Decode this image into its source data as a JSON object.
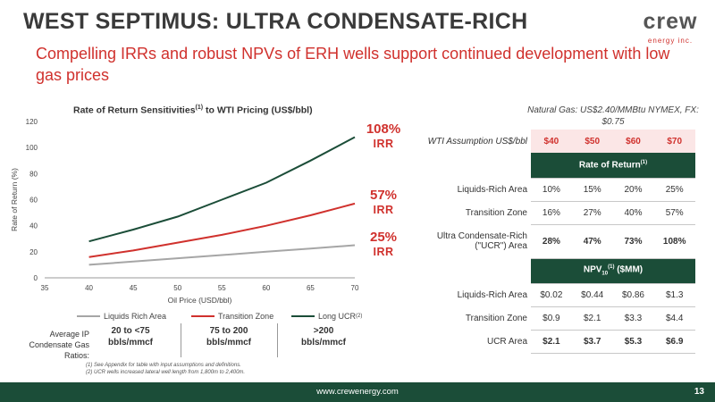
{
  "header": {
    "title": "WEST SEPTIMUS: ULTRA CONDENSATE-RICH",
    "subtitle": "Compelling IRRs and robust NPVs of ERH wells support continued development with low gas prices"
  },
  "logo": {
    "word": "crew",
    "sub": "energy inc."
  },
  "chart_data": {
    "type": "line",
    "title": "Rate of Return Sensitivities",
    "title_sup": "(1)",
    "title_suffix": " to WTI Pricing (US$/bbl)",
    "xlabel": "Oil Price (USD/bbl)",
    "ylabel": "Rate of Return (%)",
    "x": [
      40,
      45,
      50,
      55,
      60,
      65,
      70
    ],
    "xlim": [
      35,
      70
    ],
    "ylim": [
      0,
      120
    ],
    "xticks": [
      "35",
      "40",
      "45",
      "50",
      "55",
      "60",
      "65",
      "70"
    ],
    "yticks": [
      "0",
      "20",
      "40",
      "60",
      "80",
      "100",
      "120"
    ],
    "grid": false,
    "legend_position": "bottom",
    "series": [
      {
        "name": "Liquids Rich Area",
        "color": "#a6a6a6",
        "values": [
          10,
          12.5,
          15,
          17.5,
          20,
          22.5,
          25
        ]
      },
      {
        "name": "Transition Zone",
        "color": "#d0312d",
        "values": [
          16,
          21,
          27,
          33,
          40,
          48,
          57
        ]
      },
      {
        "name": "Long UCR",
        "name_sup": "(2)",
        "color": "#1b4d38",
        "values": [
          28,
          37,
          47,
          60,
          73,
          90,
          108
        ]
      }
    ],
    "end_labels": [
      {
        "pct": "108%",
        "label": "IRR",
        "color": "#d0312d"
      },
      {
        "pct": "57%",
        "label": "IRR",
        "color": "#d0312d"
      },
      {
        "pct": "25%",
        "label": "IRR",
        "color": "#d0312d"
      }
    ]
  },
  "ratios": {
    "label": "Average IP Condensate Gas Ratios:",
    "items": [
      {
        "line1": "20 to <75",
        "line2": "bbls/mmcf"
      },
      {
        "line1": "75 to 200",
        "line2": "bbls/mmcf"
      },
      {
        "line1": ">200",
        "line2": "bbls/mmcf"
      }
    ]
  },
  "footnotes": [
    "(1)     See Appendix for table with input assumptions and definitions.",
    "(2)     UCR wells increased lateral well length from 1,800m to 2,400m."
  ],
  "table": {
    "note": "Natural Gas: US$2.40/MMBtu NYMEX, FX: $0.75",
    "wti_label": "WTI Assumption US$/bbl",
    "columns": [
      "$40",
      "$50",
      "$60",
      "$70"
    ],
    "ror_header": "Rate of Return",
    "ror_sup": "(1)",
    "ror_rows": [
      {
        "label": "Liquids-Rich Area",
        "values": [
          "10%",
          "15%",
          "20%",
          "25%"
        ]
      },
      {
        "label": "Transition Zone",
        "values": [
          "16%",
          "27%",
          "40%",
          "57%"
        ]
      },
      {
        "label": "Ultra Condensate-Rich (\"UCR\") Area",
        "values": [
          "28%",
          "47%",
          "73%",
          "108%"
        ]
      }
    ],
    "npv_header_pre": "NPV",
    "npv_sub": "10",
    "npv_sup": "(1)",
    "npv_header_post": " ($MM)",
    "npv_rows": [
      {
        "label": "Liquids-Rich Area",
        "values": [
          "$0.02",
          "$0.44",
          "$0.86",
          "$1.3"
        ]
      },
      {
        "label": "Transition Zone",
        "values": [
          "$0.9",
          "$2.1",
          "$3.3",
          "$4.4"
        ]
      },
      {
        "label": "UCR Area",
        "values": [
          "$2.1",
          "$3.7",
          "$5.3",
          "$6.9"
        ]
      }
    ]
  },
  "footer": {
    "url": "www.crewenergy.com",
    "page": "13"
  }
}
